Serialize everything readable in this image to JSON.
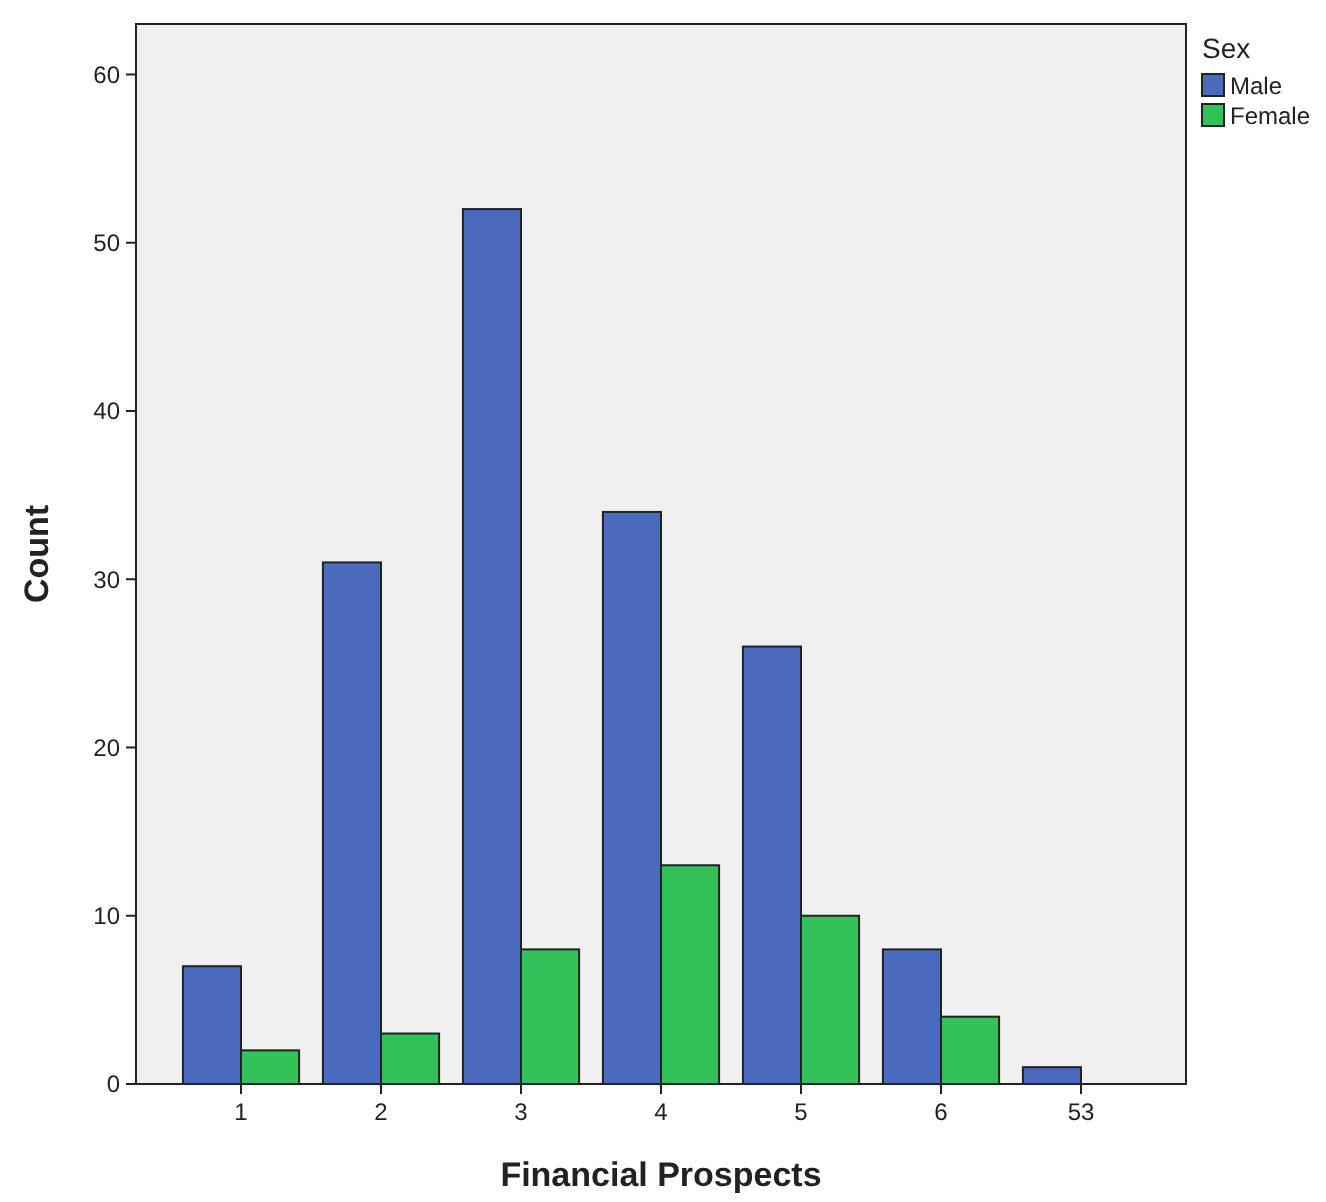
{
  "chart_data": {
    "type": "bar",
    "xlabel": "Financial Prospects",
    "ylabel": "Count",
    "legend_title": "Sex",
    "legend": "top right",
    "grid": false,
    "categories": [
      "1",
      "2",
      "3",
      "4",
      "5",
      "6",
      "53"
    ],
    "ylim": [
      0,
      63
    ],
    "yticks": [
      0,
      10,
      20,
      30,
      40,
      50,
      60
    ],
    "series": [
      {
        "name": "Male",
        "color": "#4a6bbd",
        "values": [
          7,
          31,
          52,
          34,
          26,
          8,
          1
        ]
      },
      {
        "name": "Female",
        "color": "#33c15a",
        "values": [
          2,
          3,
          8,
          13,
          10,
          4,
          null
        ]
      }
    ]
  }
}
